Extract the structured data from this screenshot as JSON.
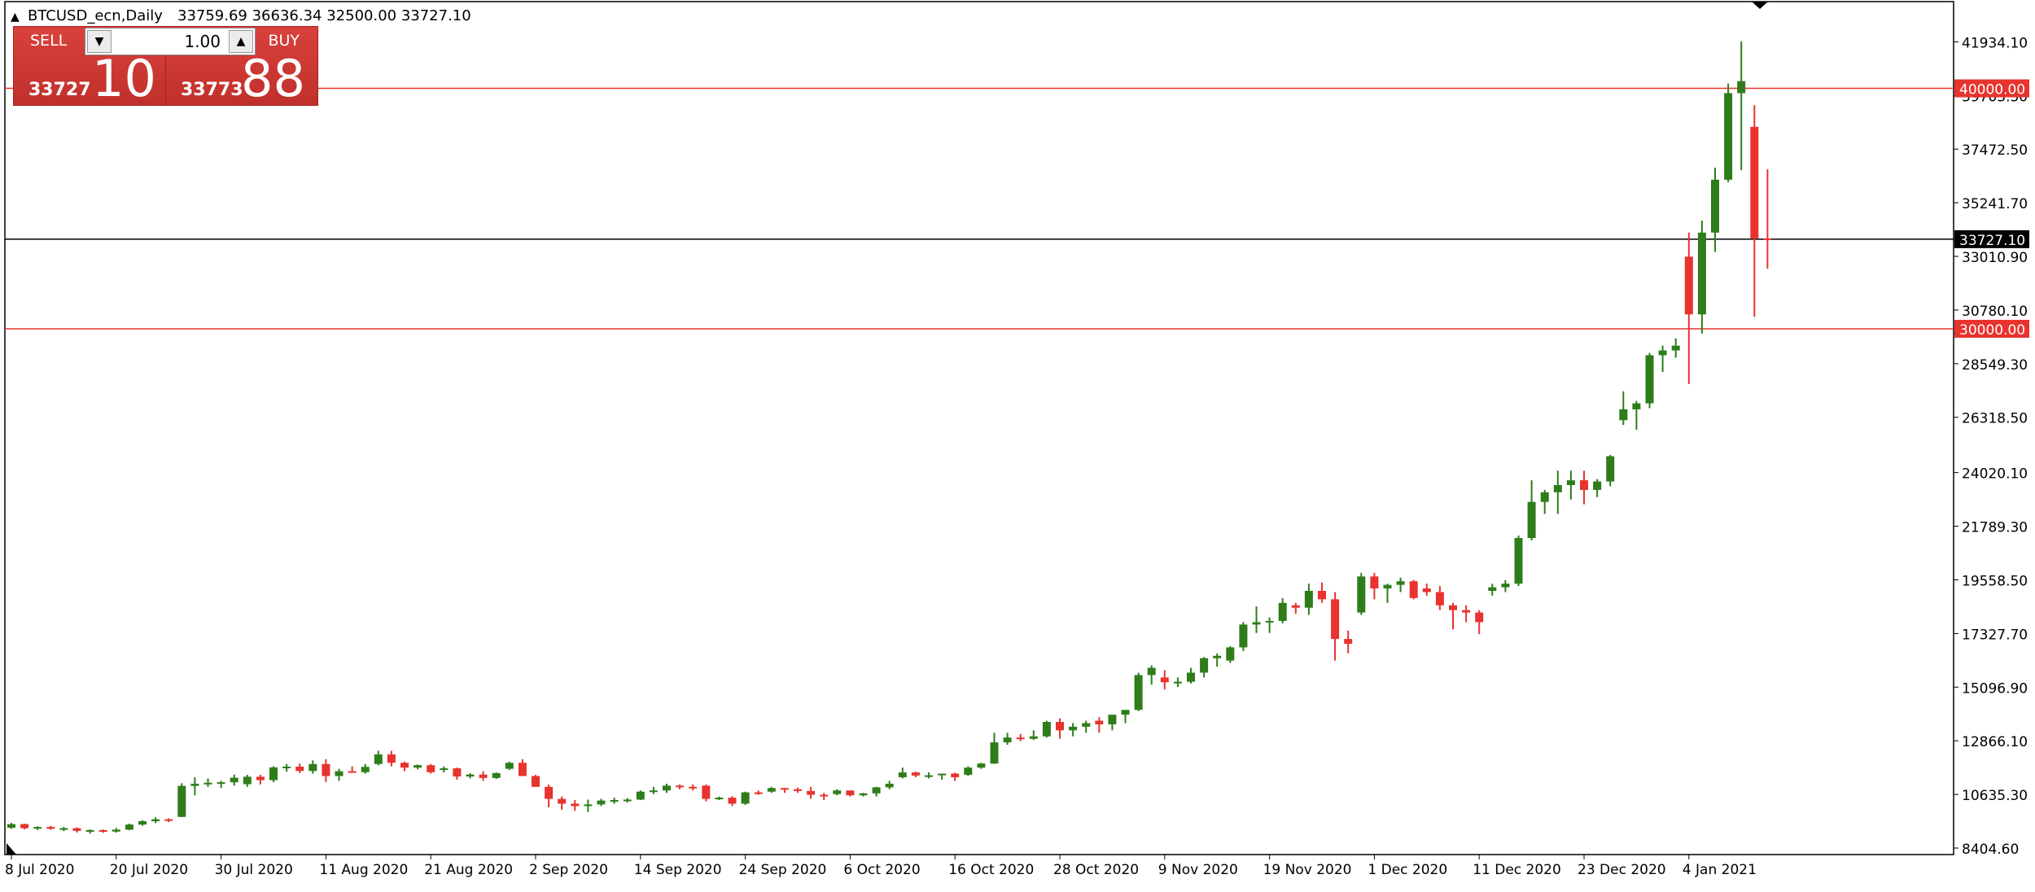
{
  "header": {
    "triangle_icon": "triangle-up-icon",
    "symbol": "BTCUSD_ecn,Daily",
    "ohlc": "33759.69 36636.34 32500.00 33727.10"
  },
  "trade_panel": {
    "sell_label": "SELL",
    "buy_label": "BUY",
    "lot": "1.00",
    "sell_small": "33727",
    "sell_big": "10",
    "buy_small": "33773",
    "buy_big": "88",
    "panel_color": "#c9342f"
  },
  "colors": {
    "bull": "#2e7d1a",
    "bear": "#e8332e",
    "level_line": "#e8332e",
    "current_line": "#000000"
  },
  "chart_data": {
    "type": "candlestick",
    "symbol": "BTCUSD_ecn",
    "timeframe": "Daily",
    "ylim": [
      8404.6,
      43200
    ],
    "y_ticks": [
      "41934.10",
      "39703.30",
      "37472.50",
      "35241.70",
      "33010.90",
      "30780.10",
      "28549.30",
      "26318.50",
      "24020.10",
      "21789.30",
      "19558.50",
      "17327.70",
      "15096.90",
      "12866.10",
      "10635.30",
      "8404.60"
    ],
    "x_ticks": [
      "8 Jul 2020",
      "20 Jul 2020",
      "30 Jul 2020",
      "11 Aug 2020",
      "21 Aug 2020",
      "2 Sep 2020",
      "14 Sep 2020",
      "24 Sep 2020",
      "6 Oct 2020",
      "16 Oct 2020",
      "28 Oct 2020",
      "9 Nov 2020",
      "19 Nov 2020",
      "1 Dec 2020",
      "11 Dec 2020",
      "23 Dec 2020",
      "4 Jan 2021"
    ],
    "x_tick_bar_index": [
      0,
      8,
      16,
      24,
      32,
      40,
      48,
      56,
      64,
      72,
      80,
      88,
      96,
      104,
      112,
      120,
      128
    ],
    "horizontal_levels": [
      {
        "price": 40000.0,
        "label": "40000.00",
        "color": "#e8332e"
      },
      {
        "price": 30000.0,
        "label": "30000.00",
        "color": "#e8332e"
      }
    ],
    "current_price": {
      "price": 33727.1,
      "label": "33727.10"
    },
    "candles": [
      {
        "t": "8 Jul 2020",
        "o": 9250,
        "h": 9450,
        "l": 9200,
        "c": 9400
      },
      {
        "t": "9 Jul 2020",
        "o": 9400,
        "h": 9420,
        "l": 9180,
        "c": 9230
      },
      {
        "t": "10 Jul 2020",
        "o": 9230,
        "h": 9310,
        "l": 9150,
        "c": 9280
      },
      {
        "t": "13 Jul 2020",
        "o": 9280,
        "h": 9330,
        "l": 9160,
        "c": 9210
      },
      {
        "t": "14 Jul 2020",
        "o": 9210,
        "h": 9280,
        "l": 9110,
        "c": 9230
      },
      {
        "t": "15 Jul 2020",
        "o": 9230,
        "h": 9260,
        "l": 9050,
        "c": 9120
      },
      {
        "t": "16 Jul 2020",
        "o": 9120,
        "h": 9180,
        "l": 9000,
        "c": 9150
      },
      {
        "t": "17 Jul 2020",
        "o": 9150,
        "h": 9180,
        "l": 9040,
        "c": 9080
      },
      {
        "t": "20 Jul 2020",
        "o": 9090,
        "h": 9240,
        "l": 9050,
        "c": 9170
      },
      {
        "t": "21 Jul 2020",
        "o": 9170,
        "h": 9420,
        "l": 9150,
        "c": 9380
      },
      {
        "t": "22 Jul 2020",
        "o": 9380,
        "h": 9560,
        "l": 9330,
        "c": 9520
      },
      {
        "t": "23 Jul 2020",
        "o": 9520,
        "h": 9680,
        "l": 9440,
        "c": 9600
      },
      {
        "t": "24 Jul 2020",
        "o": 9600,
        "h": 9640,
        "l": 9480,
        "c": 9550
      },
      {
        "t": "27 Jul 2020",
        "o": 9700,
        "h": 11100,
        "l": 9690,
        "c": 10990
      },
      {
        "t": "28 Jul 2020",
        "o": 10990,
        "h": 11350,
        "l": 10600,
        "c": 11080
      },
      {
        "t": "29 Jul 2020",
        "o": 11080,
        "h": 11300,
        "l": 10950,
        "c": 11120
      },
      {
        "t": "30 Jul 2020",
        "o": 11120,
        "h": 11200,
        "l": 10900,
        "c": 11140
      },
      {
        "t": "31 Jul 2020",
        "o": 11140,
        "h": 11460,
        "l": 11000,
        "c": 11330
      },
      {
        "t": "3 Aug 2020",
        "o": 11060,
        "h": 11450,
        "l": 10950,
        "c": 11370
      },
      {
        "t": "4 Aug 2020",
        "o": 11370,
        "h": 11450,
        "l": 11050,
        "c": 11230
      },
      {
        "t": "5 Aug 2020",
        "o": 11230,
        "h": 11800,
        "l": 11150,
        "c": 11760
      },
      {
        "t": "6 Aug 2020",
        "o": 11760,
        "h": 11900,
        "l": 11580,
        "c": 11790
      },
      {
        "t": "7 Aug 2020",
        "o": 11790,
        "h": 11920,
        "l": 11520,
        "c": 11610
      },
      {
        "t": "10 Aug 2020",
        "o": 11610,
        "h": 12050,
        "l": 11500,
        "c": 11900
      },
      {
        "t": "11 Aug 2020",
        "o": 11900,
        "h": 12100,
        "l": 11150,
        "c": 11400
      },
      {
        "t": "12 Aug 2020",
        "o": 11400,
        "h": 11700,
        "l": 11200,
        "c": 11600
      },
      {
        "t": "13 Aug 2020",
        "o": 11600,
        "h": 11800,
        "l": 11550,
        "c": 11560
      },
      {
        "t": "14 Aug 2020",
        "o": 11560,
        "h": 11900,
        "l": 11500,
        "c": 11780
      },
      {
        "t": "17 Aug 2020",
        "o": 11900,
        "h": 12450,
        "l": 11850,
        "c": 12300
      },
      {
        "t": "18 Aug 2020",
        "o": 12300,
        "h": 12450,
        "l": 11800,
        "c": 11950
      },
      {
        "t": "19 Aug 2020",
        "o": 11950,
        "h": 12000,
        "l": 11600,
        "c": 11750
      },
      {
        "t": "20 Aug 2020",
        "o": 11750,
        "h": 11880,
        "l": 11680,
        "c": 11850
      },
      {
        "t": "21 Aug 2020",
        "o": 11850,
        "h": 11900,
        "l": 11500,
        "c": 11560
      },
      {
        "t": "24 Aug 2020",
        "o": 11700,
        "h": 11800,
        "l": 11550,
        "c": 11720
      },
      {
        "t": "25 Aug 2020",
        "o": 11720,
        "h": 11750,
        "l": 11250,
        "c": 11380
      },
      {
        "t": "26 Aug 2020",
        "o": 11380,
        "h": 11520,
        "l": 11300,
        "c": 11460
      },
      {
        "t": "27 Aug 2020",
        "o": 11460,
        "h": 11600,
        "l": 11200,
        "c": 11320
      },
      {
        "t": "28 Aug 2020",
        "o": 11320,
        "h": 11550,
        "l": 11280,
        "c": 11520
      },
      {
        "t": "31 Aug 2020",
        "o": 11700,
        "h": 12000,
        "l": 11650,
        "c": 11950
      },
      {
        "t": "1 Sep 2020",
        "o": 11950,
        "h": 12100,
        "l": 11700,
        "c": 11400
      },
      {
        "t": "2 Sep 2020",
        "o": 11400,
        "h": 11450,
        "l": 10950,
        "c": 10950
      },
      {
        "t": "3 Sep 2020",
        "o": 10950,
        "h": 11050,
        "l": 10100,
        "c": 10450
      },
      {
        "t": "4 Sep 2020",
        "o": 10450,
        "h": 10550,
        "l": 10000,
        "c": 10250
      },
      {
        "t": "7 Sep 2020",
        "o": 10250,
        "h": 10400,
        "l": 9950,
        "c": 10150
      },
      {
        "t": "8 Sep 2020",
        "o": 10150,
        "h": 10420,
        "l": 9900,
        "c": 10220
      },
      {
        "t": "9 Sep 2020",
        "o": 10220,
        "h": 10450,
        "l": 10150,
        "c": 10380
      },
      {
        "t": "10 Sep 2020",
        "o": 10380,
        "h": 10500,
        "l": 10250,
        "c": 10400
      },
      {
        "t": "11 Sep 2020",
        "o": 10400,
        "h": 10480,
        "l": 10300,
        "c": 10420
      },
      {
        "t": "14 Sep 2020",
        "o": 10420,
        "h": 10800,
        "l": 10400,
        "c": 10750
      },
      {
        "t": "15 Sep 2020",
        "o": 10750,
        "h": 10950,
        "l": 10650,
        "c": 10800
      },
      {
        "t": "16 Sep 2020",
        "o": 10800,
        "h": 11080,
        "l": 10700,
        "c": 11000
      },
      {
        "t": "17 Sep 2020",
        "o": 11000,
        "h": 11050,
        "l": 10850,
        "c": 10950
      },
      {
        "t": "18 Sep 2020",
        "o": 10950,
        "h": 11050,
        "l": 10800,
        "c": 10900
      },
      {
        "t": "21 Sep 2020",
        "o": 11000,
        "h": 11050,
        "l": 10350,
        "c": 10450
      },
      {
        "t": "22 Sep 2020",
        "o": 10450,
        "h": 10550,
        "l": 10400,
        "c": 10500
      },
      {
        "t": "23 Sep 2020",
        "o": 10500,
        "h": 10560,
        "l": 10150,
        "c": 10250
      },
      {
        "t": "24 Sep 2020",
        "o": 10250,
        "h": 10750,
        "l": 10200,
        "c": 10720
      },
      {
        "t": "25 Sep 2020",
        "o": 10720,
        "h": 10800,
        "l": 10620,
        "c": 10700
      },
      {
        "t": "28 Sep 2020",
        "o": 10750,
        "h": 10950,
        "l": 10700,
        "c": 10900
      },
      {
        "t": "29 Sep 2020",
        "o": 10900,
        "h": 10900,
        "l": 10700,
        "c": 10850
      },
      {
        "t": "30 Sep 2020",
        "o": 10850,
        "h": 10920,
        "l": 10700,
        "c": 10780
      },
      {
        "t": "1 Oct 2020",
        "o": 10780,
        "h": 10950,
        "l": 10450,
        "c": 10620
      },
      {
        "t": "2 Oct 2020",
        "o": 10620,
        "h": 10700,
        "l": 10400,
        "c": 10580
      },
      {
        "t": "5 Oct 2020",
        "o": 10650,
        "h": 10850,
        "l": 10600,
        "c": 10800
      },
      {
        "t": "6 Oct 2020",
        "o": 10800,
        "h": 10800,
        "l": 10550,
        "c": 10600
      },
      {
        "t": "7 Oct 2020",
        "o": 10600,
        "h": 10700,
        "l": 10550,
        "c": 10680
      },
      {
        "t": "8 Oct 2020",
        "o": 10680,
        "h": 10950,
        "l": 10550,
        "c": 10930
      },
      {
        "t": "9 Oct 2020",
        "o": 10930,
        "h": 11200,
        "l": 10850,
        "c": 11080
      },
      {
        "t": "12 Oct 2020",
        "o": 11350,
        "h": 11750,
        "l": 11300,
        "c": 11550
      },
      {
        "t": "13 Oct 2020",
        "o": 11550,
        "h": 11580,
        "l": 11350,
        "c": 11420
      },
      {
        "t": "14 Oct 2020",
        "o": 11420,
        "h": 11550,
        "l": 11300,
        "c": 11430
      },
      {
        "t": "15 Oct 2020",
        "o": 11430,
        "h": 11500,
        "l": 11250,
        "c": 11500
      },
      {
        "t": "16 Oct 2020",
        "o": 11500,
        "h": 11540,
        "l": 11200,
        "c": 11350
      },
      {
        "t": "19 Oct 2020",
        "o": 11450,
        "h": 11800,
        "l": 11400,
        "c": 11750
      },
      {
        "t": "20 Oct 2020",
        "o": 11750,
        "h": 11950,
        "l": 11700,
        "c": 11920
      },
      {
        "t": "21 Oct 2020",
        "o": 11920,
        "h": 13200,
        "l": 11900,
        "c": 12800
      },
      {
        "t": "22 Oct 2020",
        "o": 12800,
        "h": 13200,
        "l": 12700,
        "c": 13000
      },
      {
        "t": "23 Oct 2020",
        "o": 13000,
        "h": 13150,
        "l": 12850,
        "c": 12950
      },
      {
        "t": "26 Oct 2020",
        "o": 12950,
        "h": 13300,
        "l": 12900,
        "c": 13050
      },
      {
        "t": "27 Oct 2020",
        "o": 13050,
        "h": 13700,
        "l": 13000,
        "c": 13650
      },
      {
        "t": "28 Oct 2020",
        "o": 13650,
        "h": 13800,
        "l": 12950,
        "c": 13300
      },
      {
        "t": "29 Oct 2020",
        "o": 13300,
        "h": 13600,
        "l": 13050,
        "c": 13450
      },
      {
        "t": "30 Oct 2020",
        "o": 13450,
        "h": 13700,
        "l": 13200,
        "c": 13600
      },
      {
        "t": "2 Nov 2020",
        "o": 13700,
        "h": 13850,
        "l": 13200,
        "c": 13550
      },
      {
        "t": "3 Nov 2020",
        "o": 13550,
        "h": 13950,
        "l": 13300,
        "c": 13950
      },
      {
        "t": "4 Nov 2020",
        "o": 13950,
        "h": 14100,
        "l": 13600,
        "c": 14150
      },
      {
        "t": "5 Nov 2020",
        "o": 14150,
        "h": 15700,
        "l": 14100,
        "c": 15600
      },
      {
        "t": "6 Nov 2020",
        "o": 15600,
        "h": 16000,
        "l": 15200,
        "c": 15900
      },
      {
        "t": "9 Nov 2020",
        "o": 15500,
        "h": 15800,
        "l": 15000,
        "c": 15300
      },
      {
        "t": "10 Nov 2020",
        "o": 15300,
        "h": 15500,
        "l": 15100,
        "c": 15320
      },
      {
        "t": "11 Nov 2020",
        "o": 15320,
        "h": 15900,
        "l": 15250,
        "c": 15700
      },
      {
        "t": "12 Nov 2020",
        "o": 15700,
        "h": 16350,
        "l": 15500,
        "c": 16300
      },
      {
        "t": "13 Nov 2020",
        "o": 16300,
        "h": 16500,
        "l": 15950,
        "c": 16400
      },
      {
        "t": "16 Nov 2020",
        "o": 16200,
        "h": 16800,
        "l": 16100,
        "c": 16750
      },
      {
        "t": "17 Nov 2020",
        "o": 16750,
        "h": 17800,
        "l": 16600,
        "c": 17700
      },
      {
        "t": "18 Nov 2020",
        "o": 17700,
        "h": 18450,
        "l": 17350,
        "c": 17800
      },
      {
        "t": "19 Nov 2020",
        "o": 17800,
        "h": 18000,
        "l": 17350,
        "c": 17850
      },
      {
        "t": "20 Nov 2020",
        "o": 17850,
        "h": 18800,
        "l": 17750,
        "c": 18600
      },
      {
        "t": "23 Nov 2020",
        "o": 18500,
        "h": 18600,
        "l": 18150,
        "c": 18400
      },
      {
        "t": "24 Nov 2020",
        "o": 18400,
        "h": 19400,
        "l": 18100,
        "c": 19100
      },
      {
        "t": "25 Nov 2020",
        "o": 19100,
        "h": 19450,
        "l": 18600,
        "c": 18750
      },
      {
        "t": "26 Nov 2020",
        "o": 18750,
        "h": 19050,
        "l": 16200,
        "c": 17100
      },
      {
        "t": "27 Nov 2020",
        "o": 17100,
        "h": 17450,
        "l": 16500,
        "c": 16900
      },
      {
        "t": "30 Nov 2020",
        "o": 18200,
        "h": 19850,
        "l": 18100,
        "c": 19700
      },
      {
        "t": "1 Dec 2020",
        "o": 19700,
        "h": 19850,
        "l": 18750,
        "c": 19200
      },
      {
        "t": "2 Dec 2020",
        "o": 19200,
        "h": 19400,
        "l": 18600,
        "c": 19350
      },
      {
        "t": "3 Dec 2020",
        "o": 19350,
        "h": 19650,
        "l": 19050,
        "c": 19500
      },
      {
        "t": "4 Dec 2020",
        "o": 19500,
        "h": 19550,
        "l": 18750,
        "c": 18800
      },
      {
        "t": "7 Dec 2020",
        "o": 19200,
        "h": 19400,
        "l": 18900,
        "c": 19050
      },
      {
        "t": "8 Dec 2020",
        "o": 19050,
        "h": 19300,
        "l": 18300,
        "c": 18500
      },
      {
        "t": "9 Dec 2020",
        "o": 18500,
        "h": 18600,
        "l": 17500,
        "c": 18300
      },
      {
        "t": "10 Dec 2020",
        "o": 18300,
        "h": 18500,
        "l": 17800,
        "c": 18200
      },
      {
        "t": "11 Dec 2020",
        "o": 18200,
        "h": 18300,
        "l": 17300,
        "c": 17800
      },
      {
        "t": "14 Dec 2020",
        "o": 19100,
        "h": 19400,
        "l": 18900,
        "c": 19250
      },
      {
        "t": "15 Dec 2020",
        "o": 19250,
        "h": 19550,
        "l": 19050,
        "c": 19400
      },
      {
        "t": "16 Dec 2020",
        "o": 19400,
        "h": 21400,
        "l": 19300,
        "c": 21300
      },
      {
        "t": "17 Dec 2020",
        "o": 21300,
        "h": 23700,
        "l": 21200,
        "c": 22800
      },
      {
        "t": "18 Dec 2020",
        "o": 22800,
        "h": 23300,
        "l": 22300,
        "c": 23200
      },
      {
        "t": "21 Dec 2020",
        "o": 23200,
        "h": 24100,
        "l": 22300,
        "c": 23500
      },
      {
        "t": "22 Dec 2020",
        "o": 23500,
        "h": 24100,
        "l": 22900,
        "c": 23700
      },
      {
        "t": "23 Dec 2020",
        "o": 23700,
        "h": 24100,
        "l": 22700,
        "c": 23300
      },
      {
        "t": "24 Dec 2020",
        "o": 23300,
        "h": 23750,
        "l": 23000,
        "c": 23650
      },
      {
        "t": "25 Dec 2020",
        "o": 23650,
        "h": 24750,
        "l": 23450,
        "c": 24700
      },
      {
        "t": "28 Dec 2020",
        "o": 26200,
        "h": 27400,
        "l": 26000,
        "c": 26650
      },
      {
        "t": "29 Dec 2020",
        "o": 26650,
        "h": 27000,
        "l": 25800,
        "c": 26900
      },
      {
        "t": "30 Dec 2020",
        "o": 26900,
        "h": 29000,
        "l": 26700,
        "c": 28900
      },
      {
        "t": "31 Dec 2020",
        "o": 28900,
        "h": 29300,
        "l": 28200,
        "c": 29100
      },
      {
        "t": "1 Jan 2021",
        "o": 29100,
        "h": 29600,
        "l": 28800,
        "c": 29300
      },
      {
        "t": "4 Jan 2021",
        "o": 33000,
        "h": 34000,
        "l": 27700,
        "c": 30600
      },
      {
        "t": "5 Jan 2021",
        "o": 30600,
        "h": 34500,
        "l": 29800,
        "c": 34000
      },
      {
        "t": "6 Jan 2021",
        "o": 34000,
        "h": 36700,
        "l": 33200,
        "c": 36200
      },
      {
        "t": "7 Jan 2021",
        "o": 36200,
        "h": 40200,
        "l": 36100,
        "c": 39800
      },
      {
        "t": "8 Jan 2021",
        "o": 39800,
        "h": 41950,
        "l": 36600,
        "c": 40300
      },
      {
        "t": "11 Jan 2021",
        "o": 38400,
        "h": 39300,
        "l": 30500,
        "c": 33759.69
      },
      {
        "t": "12 Jan 2021",
        "o": 33759.69,
        "h": 36636.34,
        "l": 32500,
        "c": 33727.1
      }
    ]
  }
}
